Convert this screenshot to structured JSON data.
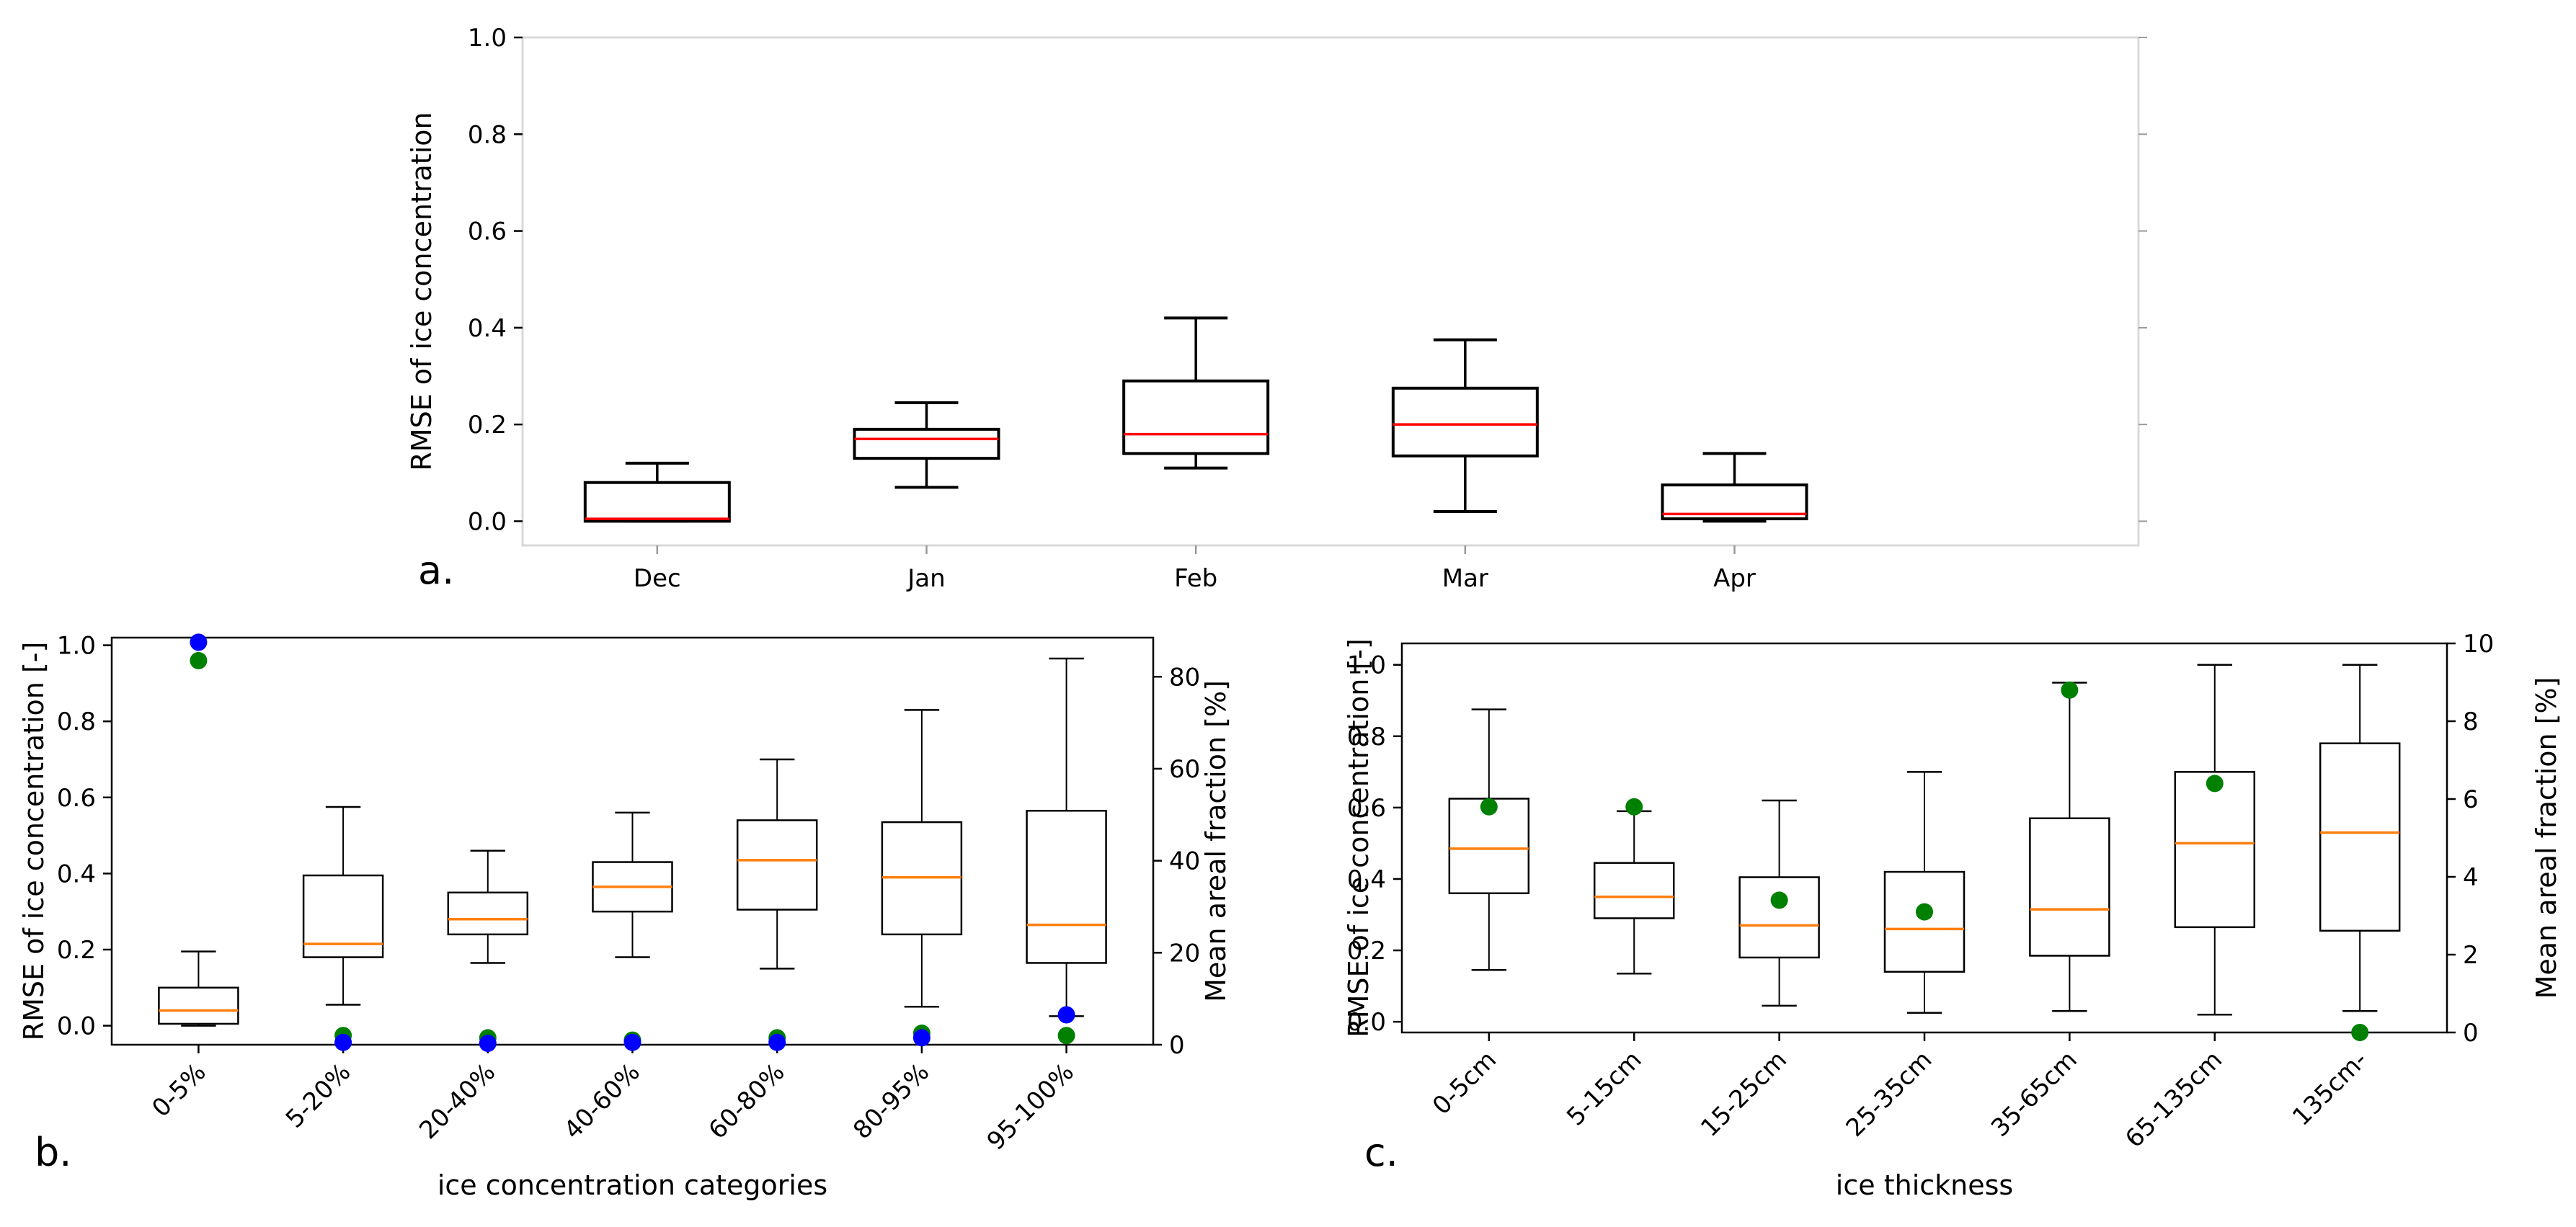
{
  "colors": {
    "box": "#000000",
    "median_a": "#ff0000",
    "median_bc": "#ff7f0e",
    "green_dot": "#008000",
    "blue_dot": "#0000ff",
    "frame_a": "#d9d9d9"
  },
  "chart_data": [
    {
      "type": "box",
      "panel_label": "a.",
      "title": "",
      "xlabel": "",
      "ylabel": "RMSE of ice concentration",
      "ylim": [
        -0.05,
        1.0
      ],
      "yticks": [
        "0.0",
        "0.2",
        "0.4",
        "0.6",
        "0.8",
        "1.0"
      ],
      "categories": [
        "Dec",
        "Jan",
        "Feb",
        "Mar",
        "Apr"
      ],
      "boxes": [
        {
          "whislo": 0.0,
          "q1": 0.0,
          "med": 0.005,
          "q3": 0.08,
          "whishi": 0.12
        },
        {
          "whislo": 0.07,
          "q1": 0.13,
          "med": 0.17,
          "q3": 0.19,
          "whishi": 0.245
        },
        {
          "whislo": 0.11,
          "q1": 0.14,
          "med": 0.18,
          "q3": 0.29,
          "whishi": 0.42
        },
        {
          "whislo": 0.02,
          "q1": 0.135,
          "med": 0.2,
          "q3": 0.275,
          "whishi": 0.375
        },
        {
          "whislo": 0.0,
          "q1": 0.005,
          "med": 0.015,
          "q3": 0.075,
          "whishi": 0.14
        }
      ]
    },
    {
      "type": "box",
      "panel_label": "b.",
      "xlabel": "ice concentration categories",
      "ylabel": "RMSE of ice concentration [-]",
      "ylabel_right": "Mean areal fraction [%]",
      "ylim": [
        -0.05,
        1.02
      ],
      "yticks": [
        "0.0",
        "0.2",
        "0.4",
        "0.6",
        "0.8",
        "1.0"
      ],
      "ylim_right": [
        0,
        88.5
      ],
      "yticks_right": [
        "0",
        "20",
        "40",
        "60",
        "80"
      ],
      "categories": [
        "0-5%",
        "5-20%",
        "20-40%",
        "40-60%",
        "60-80%",
        "80-95%",
        "95-100%"
      ],
      "boxes": [
        {
          "whislo": 0.0,
          "q1": 0.005,
          "med": 0.04,
          "q3": 0.1,
          "whishi": 0.195
        },
        {
          "whislo": 0.055,
          "q1": 0.18,
          "med": 0.215,
          "q3": 0.395,
          "whishi": 0.575
        },
        {
          "whislo": 0.165,
          "q1": 0.24,
          "med": 0.28,
          "q3": 0.35,
          "whishi": 0.46
        },
        {
          "whislo": 0.18,
          "q1": 0.3,
          "med": 0.365,
          "q3": 0.43,
          "whishi": 0.56
        },
        {
          "whislo": 0.15,
          "q1": 0.305,
          "med": 0.435,
          "q3": 0.54,
          "whishi": 0.7
        },
        {
          "whislo": 0.05,
          "q1": 0.24,
          "med": 0.39,
          "q3": 0.535,
          "whishi": 0.83
        },
        {
          "whislo": 0.025,
          "q1": 0.165,
          "med": 0.265,
          "q3": 0.565,
          "whishi": 0.965
        }
      ],
      "series": [
        {
          "name": "green points (right axis)",
          "values": [
            83.5,
            2.0,
            1.5,
            1.0,
            1.5,
            2.5,
            2.0
          ]
        },
        {
          "name": "blue points (right axis)",
          "values": [
            87.5,
            0.5,
            0.3,
            0.5,
            0.5,
            1.5,
            6.5
          ]
        }
      ]
    },
    {
      "type": "box",
      "panel_label": "c.",
      "xlabel": "ice thickness",
      "ylabel": "RMSE of ice concentration [-]",
      "ylabel_right": "Mean areal fraction [%]",
      "ylim": [
        -0.03,
        1.06
      ],
      "yticks": [
        "0.0",
        "0.2",
        "0.4",
        "0.6",
        "0.8",
        "1.0"
      ],
      "ylim_right": [
        0,
        10
      ],
      "yticks_right": [
        "0",
        "2",
        "4",
        "6",
        "8",
        "10"
      ],
      "categories": [
        "0-5cm",
        "5-15cm",
        "15-25cm",
        "25-35cm",
        "35-65cm",
        "65-135cm",
        "135cm-"
      ],
      "boxes": [
        {
          "whislo": 0.145,
          "q1": 0.36,
          "med": 0.485,
          "q3": 0.625,
          "whishi": 0.875
        },
        {
          "whislo": 0.135,
          "q1": 0.29,
          "med": 0.35,
          "q3": 0.445,
          "whishi": 0.59
        },
        {
          "whislo": 0.045,
          "q1": 0.18,
          "med": 0.27,
          "q3": 0.405,
          "whishi": 0.62
        },
        {
          "whislo": 0.025,
          "q1": 0.14,
          "med": 0.26,
          "q3": 0.42,
          "whishi": 0.7
        },
        {
          "whislo": 0.03,
          "q1": 0.185,
          "med": 0.315,
          "q3": 0.57,
          "whishi": 0.95
        },
        {
          "whislo": 0.02,
          "q1": 0.265,
          "med": 0.5,
          "q3": 0.7,
          "whishi": 1.0
        },
        {
          "whislo": 0.03,
          "q1": 0.255,
          "med": 0.53,
          "q3": 0.78,
          "whishi": 1.0
        }
      ],
      "series": [
        {
          "name": "green points (right axis)",
          "values": [
            5.8,
            5.8,
            3.4,
            3.1,
            8.8,
            6.4,
            0.0
          ]
        }
      ]
    }
  ]
}
